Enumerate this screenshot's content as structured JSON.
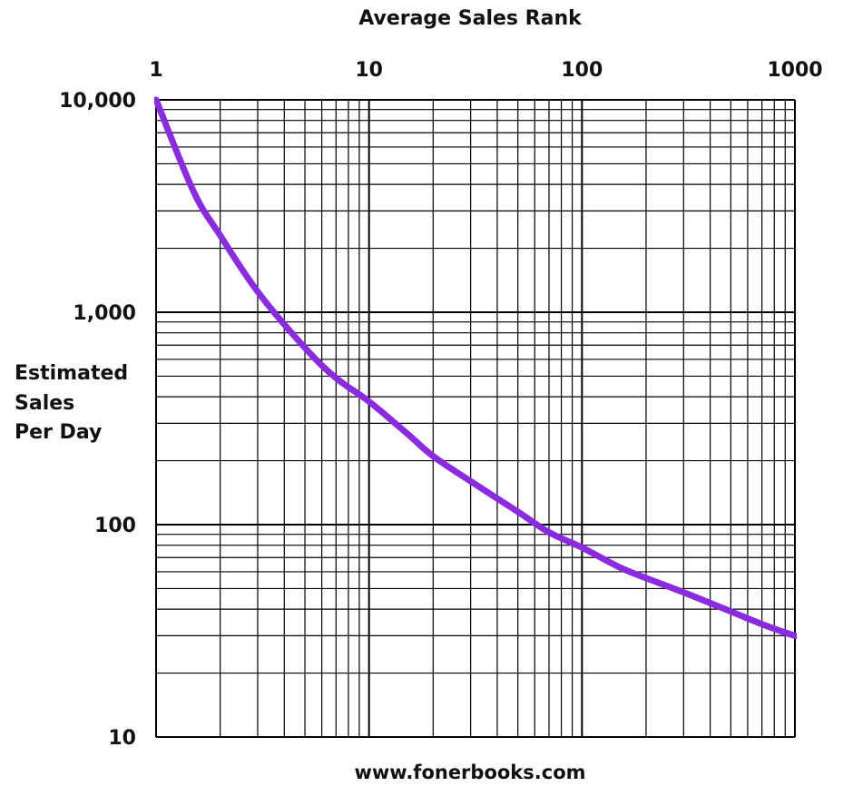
{
  "chart_data": {
    "type": "line",
    "title": "Average Sales Rank",
    "xlabel": "Average Sales Rank",
    "ylabel_lines": [
      "Estimated",
      "Sales",
      "Per Day"
    ],
    "footer": "www.fonerbooks.com",
    "x_scale": "log",
    "y_scale": "log",
    "xlim": [
      1,
      1000
    ],
    "ylim": [
      10,
      10000
    ],
    "x_ticks": [
      1,
      10,
      100,
      1000
    ],
    "x_tick_labels": [
      "1",
      "10",
      "100",
      "1000"
    ],
    "y_ticks": [
      10,
      100,
      1000,
      10000
    ],
    "y_tick_labels": [
      "10",
      "100",
      "1,000",
      "10,000"
    ],
    "grid": true,
    "series": [
      {
        "color": "#8a2be2",
        "x": [
          1,
          1.5,
          2,
          3,
          5,
          7,
          10,
          15,
          20,
          30,
          50,
          70,
          100,
          150,
          200,
          300,
          500,
          700,
          1000,
          1400
        ],
        "y": [
          10000,
          3700,
          2300,
          1250,
          680,
          490,
          380,
          270,
          210,
          160,
          115,
          92,
          78,
          63,
          56,
          48,
          39,
          34,
          30,
          28
        ]
      }
    ]
  }
}
